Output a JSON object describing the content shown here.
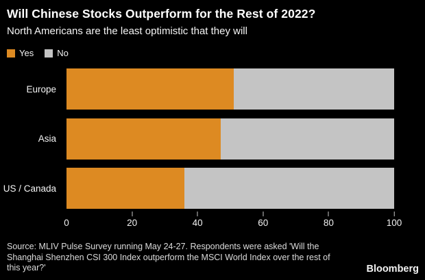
{
  "header": {
    "title": "Will Chinese Stocks Outperform for the Rest of 2022?",
    "subtitle": "North Americans are the least optimistic that they will"
  },
  "colors": {
    "yes": "#dd8a22",
    "no": "#c4c4c4",
    "background": "#000000",
    "text": "#ffffff"
  },
  "legend": [
    {
      "label": "Yes",
      "color": "#dd8a22"
    },
    {
      "label": "No",
      "color": "#c4c4c4"
    }
  ],
  "chart_data": {
    "type": "bar",
    "orientation": "horizontal-stacked",
    "categories": [
      "Europe",
      "Asia",
      "US / Canada"
    ],
    "series": [
      {
        "name": "Yes",
        "values": [
          51,
          47,
          36
        ]
      },
      {
        "name": "No",
        "values": [
          49,
          53,
          64
        ]
      }
    ],
    "title": "Will Chinese Stocks Outperform for the Rest of 2022?",
    "subtitle": "North Americans are the least optimistic that they will",
    "xlabel": "",
    "ylabel": "",
    "xlim": [
      0,
      100
    ],
    "x_ticks": [
      0,
      20,
      40,
      60,
      80,
      100
    ],
    "grid": false,
    "legend_position": "top-left"
  },
  "footer": {
    "source": "Source: MLIV Pulse Survey running May 24-27. Respondents were asked 'Will the Shanghai Shenzhen CSI 300 Index outperform the MSCI World Index over the rest of this year?'",
    "brand": "Bloomberg"
  }
}
